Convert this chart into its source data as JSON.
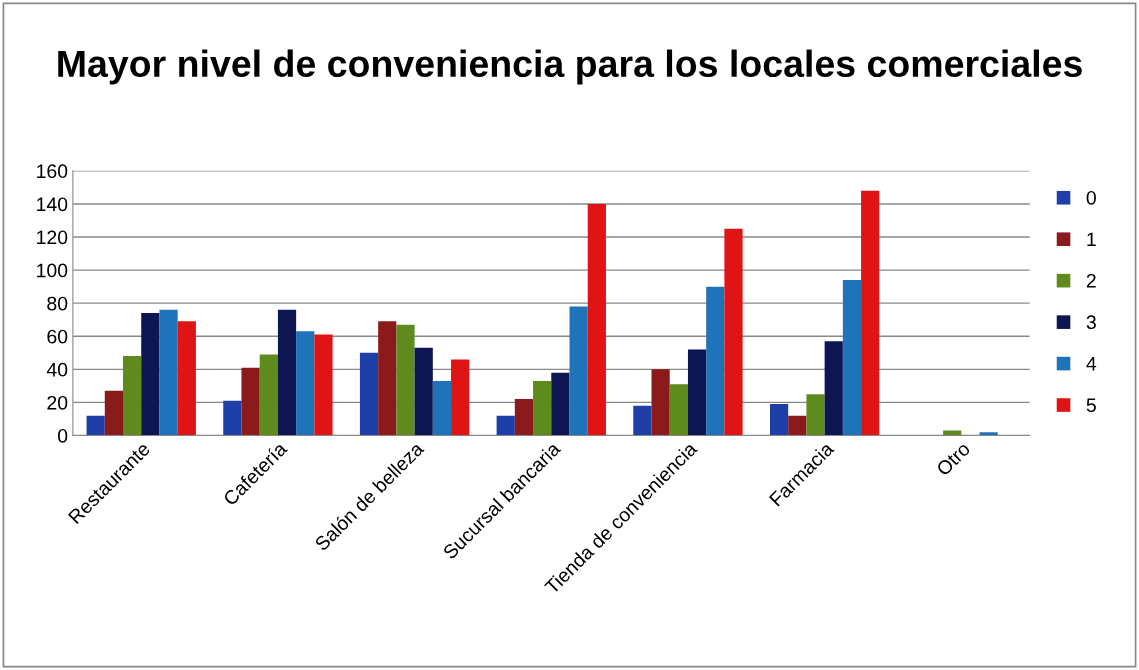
{
  "chart_data": {
    "type": "bar",
    "title": "Mayor nivel de conveniencia para los locales comerciales",
    "categories": [
      "Restaurante",
      "Cafetería",
      "Salón de belleza",
      "Sucursal bancaria",
      "Tienda de conveniencia",
      "Farmacia",
      "Otro"
    ],
    "series": [
      {
        "name": "0",
        "color": "#1f3fa8",
        "values": [
          12,
          21,
          50,
          12,
          18,
          19,
          0
        ]
      },
      {
        "name": "1",
        "color": "#8b1a1a",
        "values": [
          27,
          41,
          69,
          22,
          40,
          12,
          0
        ]
      },
      {
        "name": "2",
        "color": "#5e8a1e",
        "values": [
          48,
          49,
          67,
          33,
          31,
          25,
          3
        ]
      },
      {
        "name": "3",
        "color": "#0d1552",
        "values": [
          74,
          76,
          53,
          38,
          52,
          57,
          0
        ]
      },
      {
        "name": "4",
        "color": "#1f73b8",
        "values": [
          76,
          63,
          33,
          78,
          90,
          94,
          2
        ]
      },
      {
        "name": "5",
        "color": "#e01414",
        "values": [
          69,
          61,
          46,
          140,
          125,
          148,
          0
        ]
      }
    ],
    "ylim": [
      0,
      160
    ],
    "yticks": [
      0,
      20,
      40,
      60,
      80,
      100,
      120,
      140,
      160
    ],
    "grid": "y",
    "legend": "right"
  }
}
